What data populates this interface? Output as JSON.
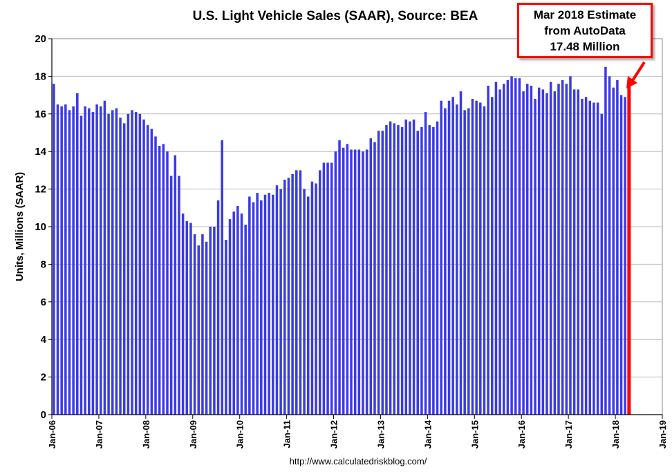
{
  "chart_data": {
    "type": "bar",
    "title": "U.S. Light Vehicle Sales (SAAR), Source: BEA",
    "xlabel": "",
    "ylabel": "Units, Millions (SAAR)",
    "ylim": [
      0,
      20
    ],
    "yticks": [
      0,
      2,
      4,
      6,
      8,
      10,
      12,
      14,
      16,
      18,
      20
    ],
    "xticks": [
      "Jan-06",
      "Jan-07",
      "Jan-08",
      "Jan-09",
      "Jan-10",
      "Jan-11",
      "Jan-12",
      "Jan-13",
      "Jan-14",
      "Jan-15",
      "Jan-16",
      "Jan-17",
      "Jan-18",
      "Jan-19"
    ],
    "grid": true,
    "source_url": "http://www.calculatedriskblog.com/",
    "bar_color": "#3a3ae6",
    "highlight_color": "#ff0000",
    "series": [
      {
        "name": "BEA",
        "start": "Jan-06",
        "values": [
          17.6,
          16.5,
          16.4,
          16.5,
          16.2,
          16.4,
          17.1,
          15.9,
          16.4,
          16.3,
          16.1,
          16.5,
          16.4,
          16.7,
          16.0,
          16.2,
          16.3,
          15.8,
          15.5,
          16.0,
          16.2,
          16.1,
          16.0,
          15.7,
          15.4,
          15.2,
          14.8,
          14.3,
          14.4,
          14.0,
          12.7,
          13.8,
          12.7,
          10.7,
          10.3,
          10.2,
          9.6,
          9.0,
          9.6,
          9.2,
          10.0,
          10.0,
          11.4,
          14.6,
          9.3,
          10.4,
          10.8,
          11.1,
          10.7,
          10.1,
          11.6,
          11.3,
          11.8,
          11.4,
          11.7,
          11.8,
          11.7,
          12.2,
          12.0,
          12.5,
          12.6,
          12.8,
          13.0,
          13.0,
          12.0,
          11.6,
          12.4,
          12.3,
          13.0,
          13.4,
          13.4,
          13.4,
          14.0,
          14.6,
          14.2,
          14.4,
          14.1,
          14.1,
          14.1,
          14.0,
          14.1,
          14.7,
          14.5,
          15.1,
          15.1,
          15.4,
          15.6,
          15.5,
          15.4,
          15.3,
          15.7,
          15.6,
          15.7,
          15.1,
          15.3,
          16.1,
          15.4,
          15.3,
          15.6,
          16.7,
          16.3,
          16.7,
          16.9,
          16.5,
          17.2,
          16.2,
          16.3,
          16.8,
          16.7,
          16.6,
          16.4,
          17.5,
          16.9,
          17.7,
          17.3,
          17.6,
          17.8,
          18.0,
          17.9,
          17.9,
          17.2,
          17.6,
          17.5,
          16.8,
          17.4,
          17.3,
          17.1,
          17.7,
          17.2,
          17.6,
          17.8,
          17.6,
          18.0,
          17.3,
          17.3,
          16.8,
          16.9,
          16.7,
          16.6,
          16.6,
          16.0,
          18.5,
          18.0,
          17.4,
          17.8,
          17.0,
          16.9
        ]
      }
    ],
    "estimate": {
      "label": "Mar 2018",
      "value": 17.48
    },
    "annotation": {
      "line1": "Mar 2018 Estimate",
      "line2": "from AutoData",
      "line3": "17.48 Million"
    }
  }
}
